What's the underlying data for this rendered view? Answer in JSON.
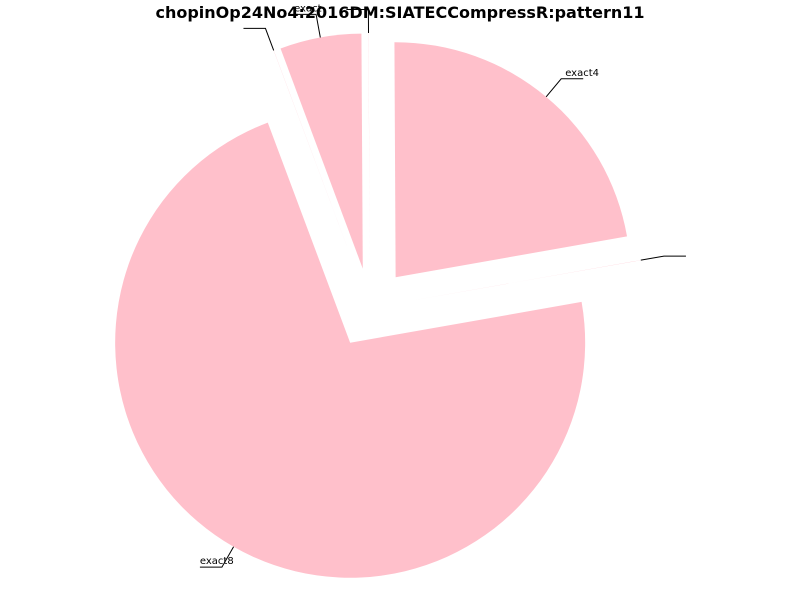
{
  "chart_data": {
    "type": "pie",
    "title": "chopinOp24No4:2016DM:SIATECCompressR:pattern11",
    "slices": [
      {
        "label": "",
        "value": 0.01
      },
      {
        "label": "exact4",
        "value": 22.3
      },
      {
        "label": "",
        "value": 0.01
      },
      {
        "label": "exact",
        "value": 5.6
      },
      {
        "label": "",
        "value": 0.01
      },
      {
        "label": "exact8",
        "value": 72.1
      }
    ],
    "colors": {
      "slice": "#ffc0cb",
      "background": "#ffffff",
      "text": "#000000"
    }
  }
}
